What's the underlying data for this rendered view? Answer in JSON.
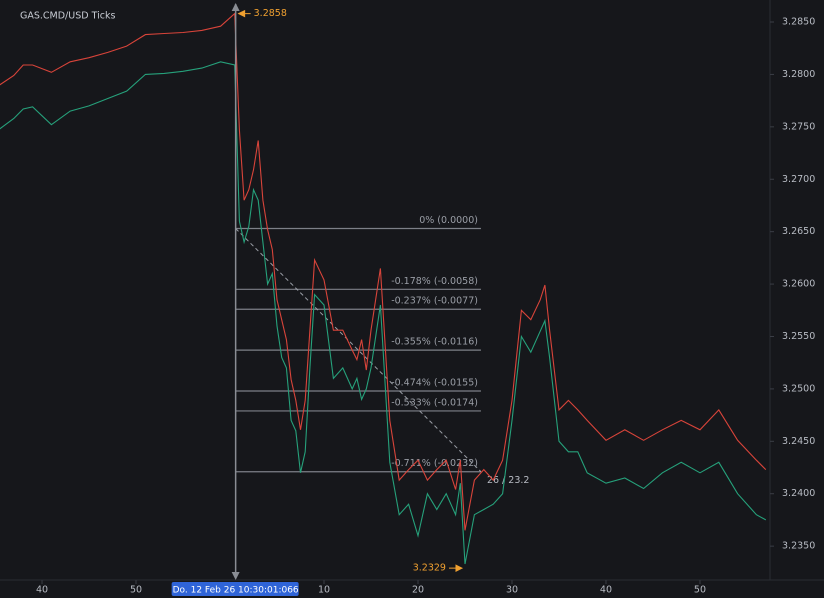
{
  "chart_data": {
    "type": "line",
    "title": "GAS.CMD/USD Ticks",
    "x": [
      35.5,
      37,
      38,
      39,
      41,
      43,
      45,
      47,
      49,
      51,
      53,
      55,
      57,
      59,
      60.5,
      61,
      61.5,
      62,
      62.5,
      63,
      63.5,
      64,
      64.5,
      65,
      65.5,
      66,
      66.5,
      67,
      67.5,
      68,
      68.5,
      69,
      70,
      71,
      72,
      73,
      73.5,
      74,
      74.5,
      75,
      76,
      77,
      78,
      79,
      80,
      81,
      82,
      83,
      84,
      84.5,
      85,
      86,
      87,
      88,
      89,
      90,
      91,
      92,
      93,
      93.5,
      94,
      95,
      96,
      97,
      98,
      100,
      102,
      104,
      106,
      108,
      110,
      112,
      114,
      116,
      117
    ],
    "series": [
      {
        "color": "#d8443a",
        "values": [
          3.279,
          3.2799,
          3.2809,
          3.2809,
          3.2802,
          3.2812,
          3.2816,
          3.2821,
          3.2827,
          3.2838,
          3.2839,
          3.284,
          3.2842,
          3.2846,
          3.2858,
          3.2747,
          3.268,
          3.269,
          3.2709,
          3.2737,
          3.268,
          3.2652,
          3.2633,
          3.2585,
          3.2566,
          3.2547,
          3.2509,
          3.2489,
          3.2461,
          3.2489,
          3.2556,
          3.2623,
          3.2604,
          3.2556,
          3.2556,
          3.2537,
          3.2528,
          3.2547,
          3.2518,
          3.2556,
          3.2615,
          3.247,
          3.2413,
          3.2423,
          3.2432,
          3.2413,
          3.2423,
          3.2432,
          3.2404,
          3.2432,
          3.2365,
          3.2413,
          3.2423,
          3.2413,
          3.2432,
          3.2489,
          3.2575,
          3.2566,
          3.2585,
          3.2599,
          3.2556,
          3.248,
          3.2489,
          3.248,
          3.247,
          3.2451,
          3.2461,
          3.2451,
          3.2461,
          3.247,
          3.2461,
          3.248,
          3.2451,
          3.2432,
          3.2423
        ]
      },
      {
        "color": "#26a17b",
        "values": [
          3.2748,
          3.2758,
          3.2767,
          3.2769,
          3.2752,
          3.2765,
          3.277,
          3.2777,
          3.2784,
          3.28,
          3.2801,
          3.2803,
          3.2806,
          3.2812,
          3.2809,
          3.266,
          3.264,
          3.2655,
          3.269,
          3.268,
          3.264,
          3.26,
          3.261,
          3.256,
          3.253,
          3.252,
          3.247,
          3.246,
          3.242,
          3.244,
          3.252,
          3.259,
          3.258,
          3.251,
          3.252,
          3.25,
          3.251,
          3.249,
          3.25,
          3.252,
          3.258,
          3.243,
          3.238,
          3.239,
          3.236,
          3.24,
          3.2385,
          3.24,
          3.238,
          3.241,
          3.2333,
          3.238,
          3.2385,
          3.239,
          3.24,
          3.247,
          3.255,
          3.2535,
          3.2555,
          3.2565,
          3.253,
          3.245,
          3.244,
          3.244,
          3.242,
          3.241,
          3.2415,
          3.2405,
          3.242,
          3.243,
          3.242,
          3.243,
          3.24,
          3.238,
          3.2375
        ]
      }
    ],
    "xlim": [
      35.53,
      117.45
    ],
    "xticks": [
      40,
      50,
      {
        "value": 70,
        "label": "10"
      },
      {
        "value": 80,
        "label": "20"
      },
      {
        "value": 90,
        "label": "30"
      },
      {
        "value": 100,
        "label": "40"
      },
      {
        "value": 110,
        "label": "50"
      }
    ],
    "ylim": [
      3.23177,
      3.2871
    ],
    "yticks": [
      {
        "value": 3.235,
        "label": "3.2350"
      },
      {
        "value": 3.24,
        "label": "3.2400"
      },
      {
        "value": 3.245,
        "label": "3.2450"
      },
      {
        "value": 3.25,
        "label": "3.2500"
      },
      {
        "value": 3.255,
        "label": "3.2550"
      },
      {
        "value": 3.26,
        "label": "3.2600"
      },
      {
        "value": 3.265,
        "label": "3.2650"
      },
      {
        "value": 3.27,
        "label": "3.2700"
      },
      {
        "value": 3.275,
        "label": "3.2750"
      },
      {
        "value": 3.28,
        "label": "3.2800"
      },
      {
        "value": 3.285,
        "label": "3.2850"
      }
    ],
    "crosshair": {
      "x": 60.6,
      "label": "Do. 12 Feb 26  10:30:01:066"
    },
    "high": {
      "x": 60.6,
      "value": 3.2858
    },
    "low": {
      "x": 85,
      "value": 3.2329
    },
    "fib": {
      "x_start": 60.6,
      "x_end": 86.7,
      "levels": [
        {
          "label": "0% (0.0000)",
          "value": 3.2653
        },
        {
          "label": "-0.178% (-0.0058)",
          "value": 3.2595
        },
        {
          "label": "-0.237% (-0.0077)",
          "value": 3.2576
        },
        {
          "label": "-0.355% (-0.0116)",
          "value": 3.2537
        },
        {
          "label": "-0.474% (-0.0155)",
          "value": 3.2498
        },
        {
          "label": "-0.533% (-0.0174)",
          "value": 3.2479
        },
        {
          "label": "-0.711% (-0.0232)",
          "value": 3.2421
        }
      ]
    },
    "measure_label": "26 / 23.2"
  }
}
